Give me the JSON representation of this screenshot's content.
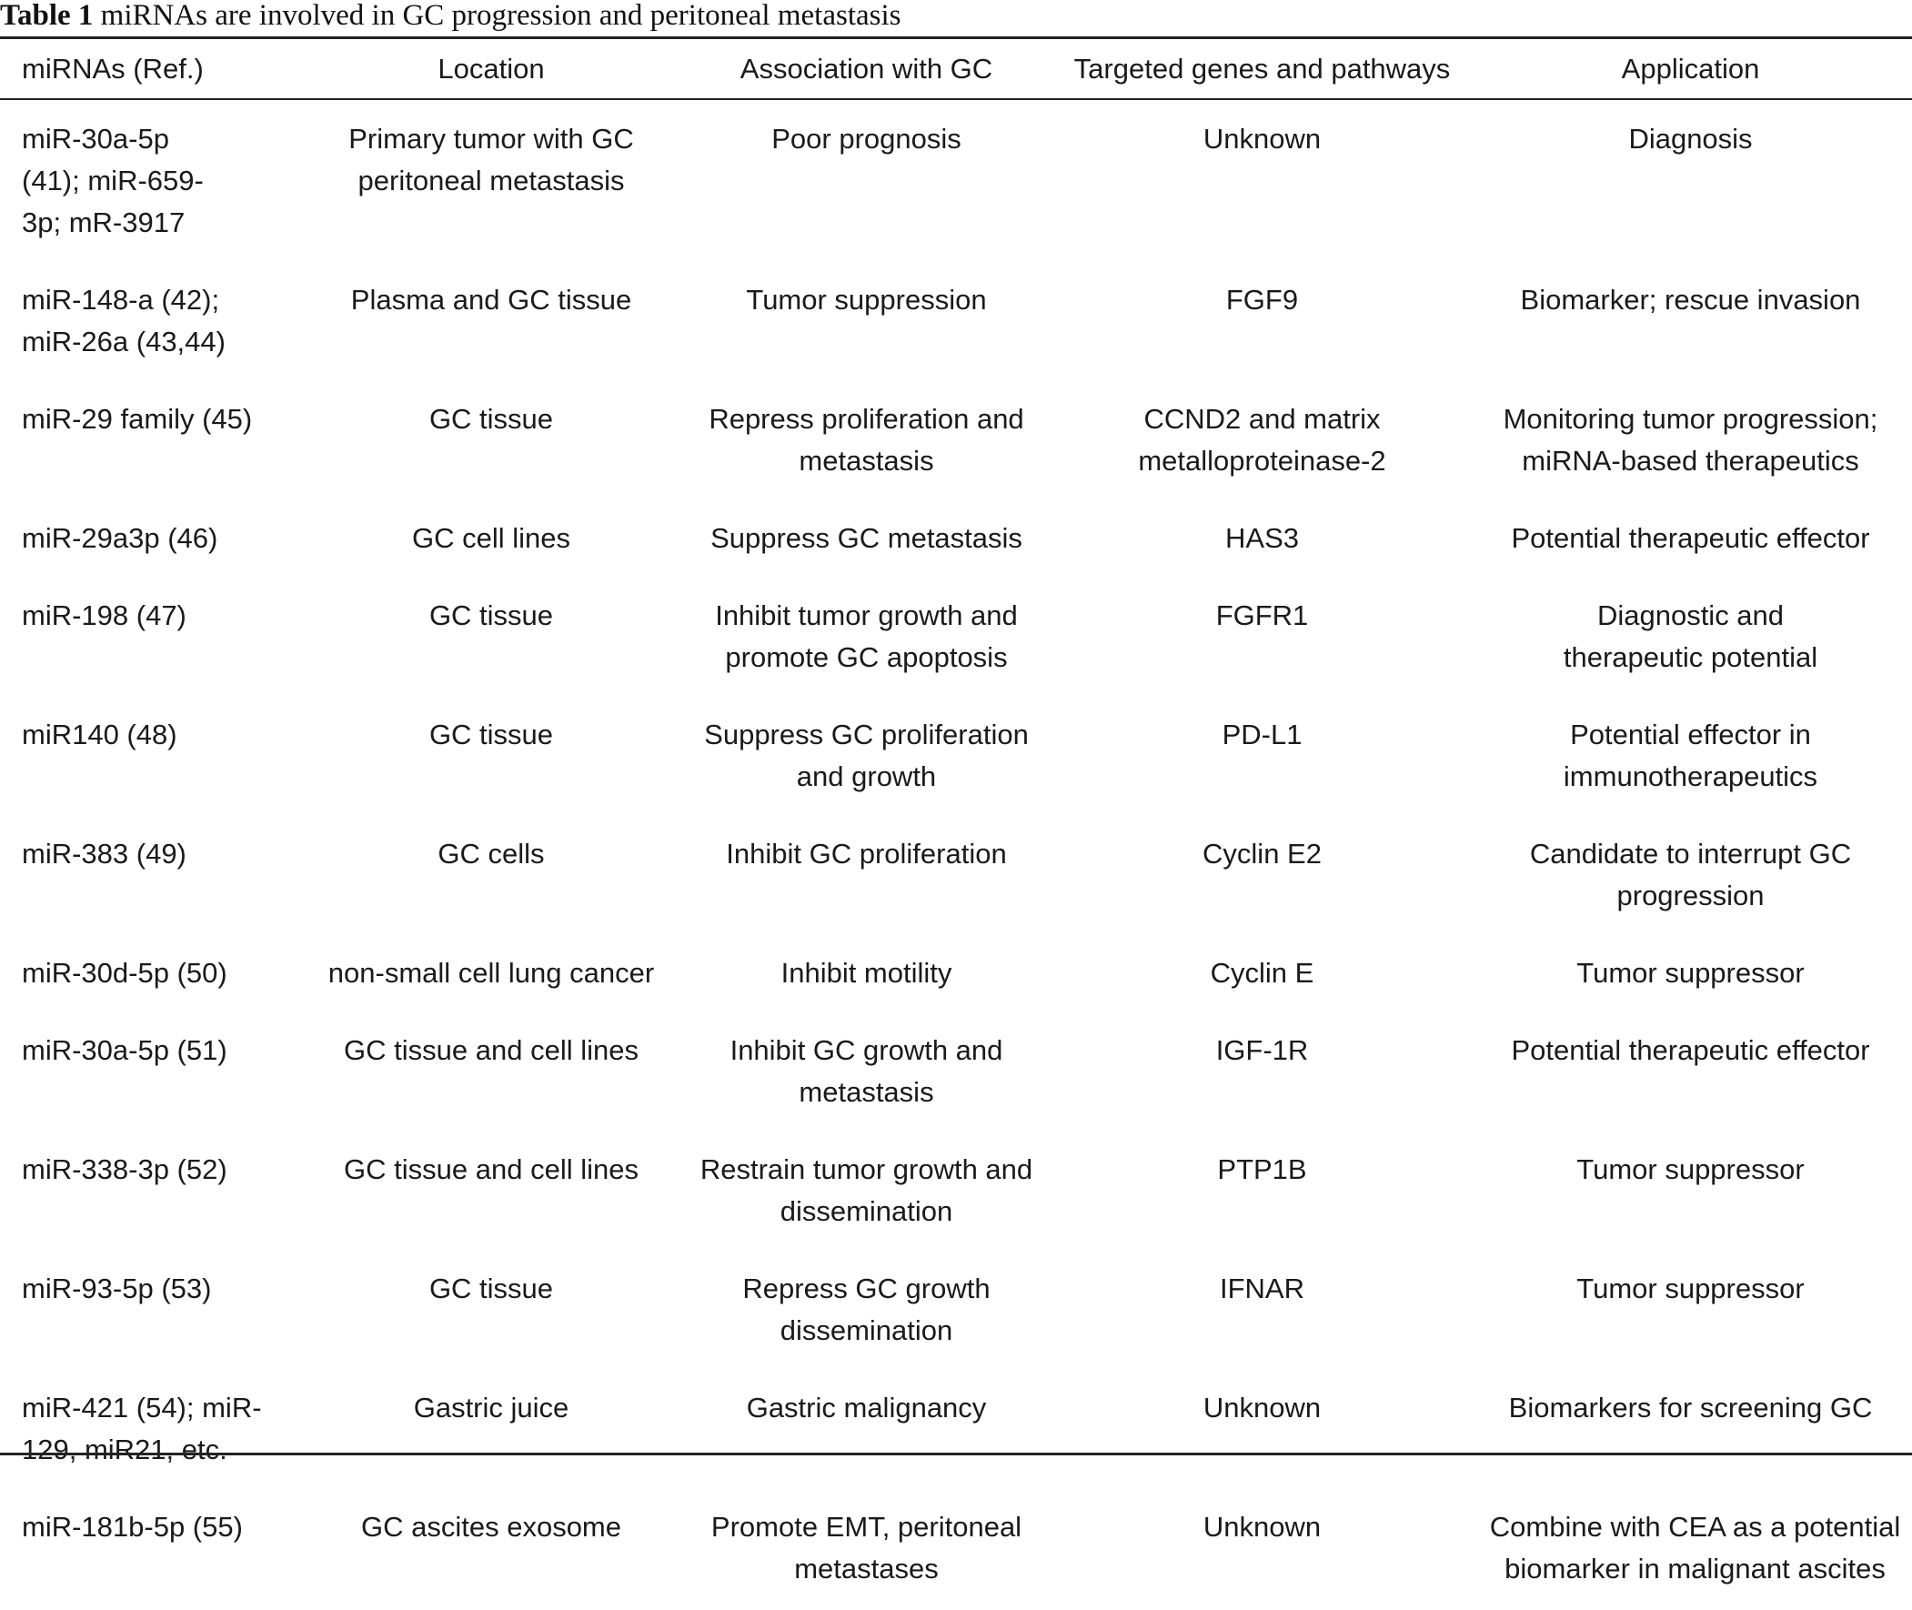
{
  "caption": {
    "label": "Table 1",
    "text": "miRNAs are involved in GC progression and peritoneal metastasis"
  },
  "columns": [
    "miRNAs (Ref.)",
    "Location",
    "Association with GC",
    "Targeted genes and pathways",
    "Application"
  ],
  "rows": [
    {
      "mirnas": "miR-30a-5p (41); miR-659-3p; mR-3917",
      "location": "Primary tumor with GC peritoneal metastasis",
      "association": "Poor prognosis",
      "targets": "Unknown",
      "application": "Diagnosis"
    },
    {
      "mirnas": "miR-148-a (42); miR-26a (43,44)",
      "location": "Plasma and GC tissue",
      "association": "Tumor suppression",
      "targets": "FGF9",
      "application": "Biomarker; rescue invasion"
    },
    {
      "mirnas": "miR-29 family (45)",
      "location": "GC tissue",
      "association": "Repress proliferation and metastasis",
      "targets": "CCND2 and matrix metalloproteinase-2",
      "application": "Monitoring tumor progression; miRNA-based therapeutics"
    },
    {
      "mirnas": "miR-29a3p (46)",
      "location": "GC cell lines",
      "association": "Suppress GC metastasis",
      "targets": "HAS3",
      "application": "Potential therapeutic effector"
    },
    {
      "mirnas": "miR-198 (47)",
      "location": "GC tissue",
      "association": "Inhibit tumor growth and promote GC apoptosis",
      "targets": "FGFR1",
      "application": "Diagnostic and therapeutic potential"
    },
    {
      "mirnas": "miR140 (48)",
      "location": "GC tissue",
      "association": "Suppress GC proliferation and growth",
      "targets": "PD-L1",
      "application": "Potential effector in immunotherapeutics"
    },
    {
      "mirnas": "miR-383 (49)",
      "location": "GC cells",
      "association": "Inhibit GC proliferation",
      "targets": "Cyclin E2",
      "application": "Candidate to interrupt GC progression"
    },
    {
      "mirnas": "miR-30d-5p (50)",
      "location": "non-small cell lung cancer",
      "association": "Inhibit motility",
      "targets": "Cyclin E",
      "application": "Tumor suppressor"
    },
    {
      "mirnas": "miR-30a-5p (51)",
      "location": "GC tissue and cell lines",
      "association": "Inhibit GC growth and metastasis",
      "targets": "IGF-1R",
      "application": "Potential therapeutic effector"
    },
    {
      "mirnas": "miR-338-3p (52)",
      "location": "GC tissue and cell lines",
      "association": "Restrain tumor growth and dissemination",
      "targets": "PTP1B",
      "application": "Tumor suppressor"
    },
    {
      "mirnas": "miR-93-5p (53)",
      "location": "GC tissue",
      "association": "Repress GC growth dissemination",
      "targets": "IFNAR",
      "application": "Tumor suppressor"
    },
    {
      "mirnas": "miR-421 (54); miR-129, miR21, etc.",
      "location": "Gastric juice",
      "association": "Gastric malignancy",
      "targets": "Unknown",
      "application": "Biomarkers for screening GC"
    },
    {
      "mirnas": "miR-181b-5p (55)",
      "location": "GC ascites exosome",
      "association": "Promote EMT, peritoneal metastases",
      "targets": "Unknown",
      "application": "Combine with CEA as a potential biomarker in malignant ascites"
    }
  ]
}
